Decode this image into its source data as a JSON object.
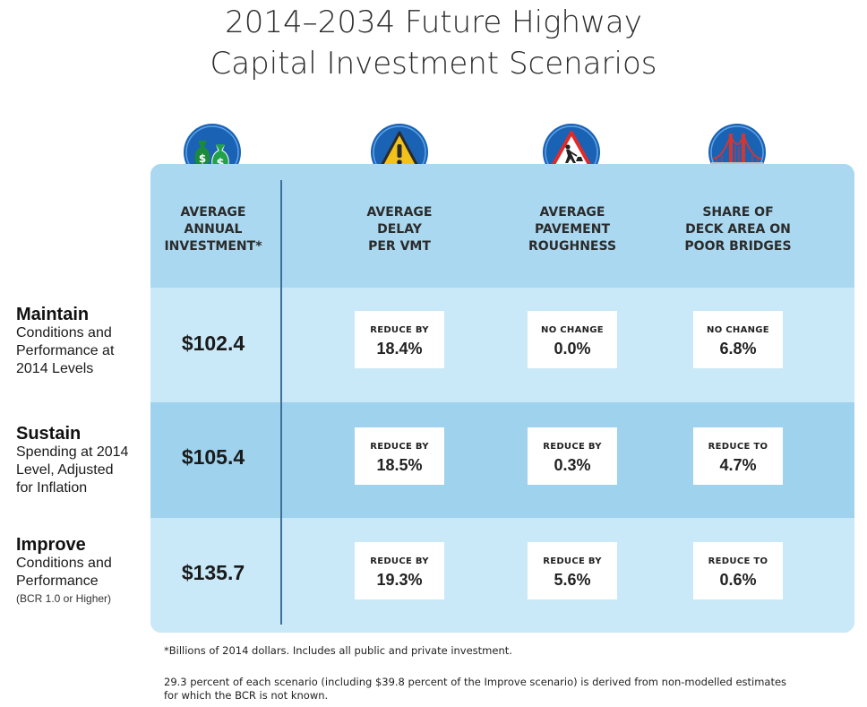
{
  "title": {
    "line1": "2014–2034 Future Highway",
    "line2": "Capital Investment Scenarios"
  },
  "columns": [
    {
      "label": [
        "AVERAGE",
        "ANNUAL",
        "INVESTMENT*"
      ],
      "icon": "money-bags-icon"
    },
    {
      "label": [
        "AVERAGE",
        "DELAY",
        "PER VMT"
      ],
      "icon": "warning-sign-icon"
    },
    {
      "label": [
        "AVERAGE",
        "PAVEMENT",
        "ROUGHNESS"
      ],
      "icon": "road-work-sign-icon"
    },
    {
      "label": [
        "SHARE OF",
        "DECK AREA ON",
        "POOR BRIDGES"
      ],
      "icon": "bridge-icon"
    }
  ],
  "rows": [
    {
      "name": "Maintain",
      "desc": [
        "Conditions and",
        "Performance at",
        "2014 Levels"
      ],
      "note": "",
      "amount": "$102.4",
      "cells": [
        {
          "label": "REDUCE BY",
          "value": "18.4%"
        },
        {
          "label": "NO CHANGE",
          "value": "0.0%"
        },
        {
          "label": "NO CHANGE",
          "value": "6.8%"
        }
      ]
    },
    {
      "name": "Sustain",
      "desc": [
        "Spending at 2014",
        "Level, Adjusted",
        "for Inflation"
      ],
      "note": "",
      "amount": "$105.4",
      "cells": [
        {
          "label": "REDUCE BY",
          "value": "18.5%"
        },
        {
          "label": "REDUCE BY",
          "value": "0.3%"
        },
        {
          "label": "REDUCE TO",
          "value": "4.7%"
        }
      ]
    },
    {
      "name": "Improve",
      "desc": [
        "Conditions and",
        "Performance"
      ],
      "note": "(BCR 1.0 or Higher)",
      "amount": "$135.7",
      "cells": [
        {
          "label": "REDUCE BY",
          "value": "19.3%"
        },
        {
          "label": "REDUCE BY",
          "value": "5.6%"
        },
        {
          "label": "REDUCE TO",
          "value": "0.6%"
        }
      ]
    }
  ],
  "footnotes": {
    "note1": "*Billions of 2014 dollars. Includes all public and private investment.",
    "note2_line1": "29.3 percent of each scenario (including $39.8 percent of the Improve scenario) is derived from non-modelled estimates",
    "note2_line2": "for which the BCR is not known."
  },
  "colors": {
    "header_band": "#a9d8f0",
    "light_band": "#c9e9f8",
    "dark_band": "#9fd2ed",
    "divider": "#3d6f9a",
    "icon_circle": "#1a62b4"
  }
}
